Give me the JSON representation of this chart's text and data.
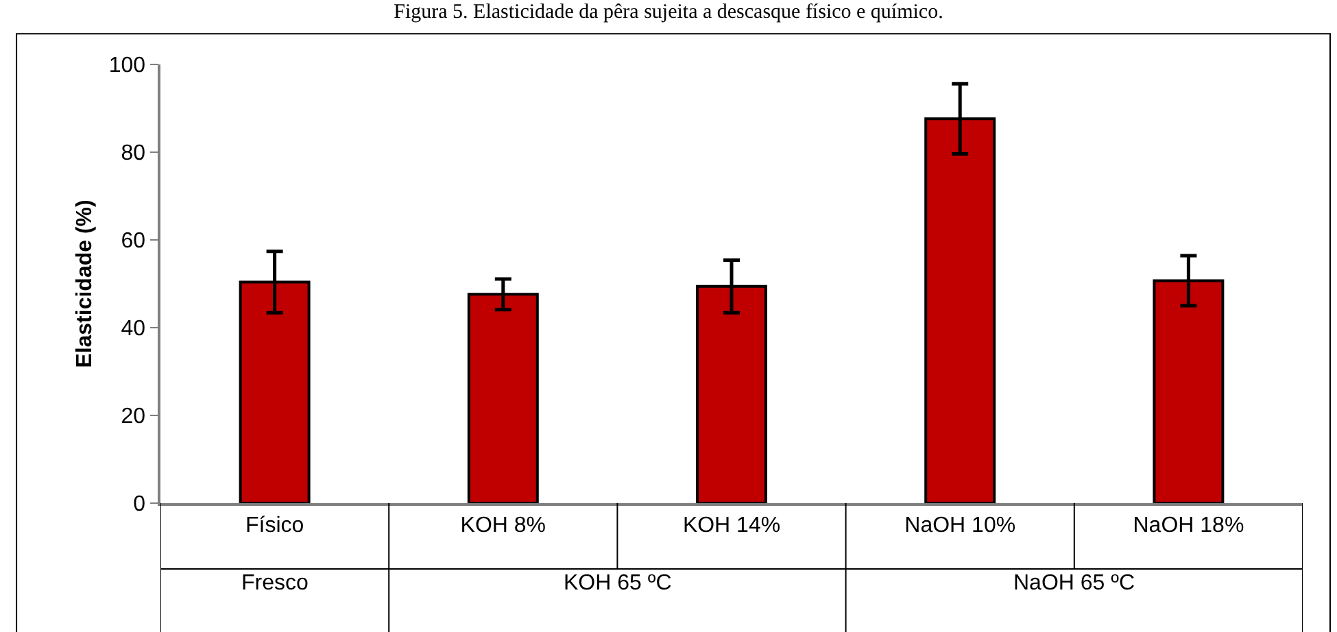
{
  "chart_data": {
    "type": "bar",
    "title": "Figura 5. Elasticidade da pêra sujeita a descasque físico e químico.",
    "ylabel": "Elasticidade (%)",
    "categories": [
      "Físico",
      "KOH 8%",
      "KOH 14%",
      "NaOH 10%",
      "NaOH 18%"
    ],
    "values": [
      50.4,
      47.6,
      49.4,
      87.6,
      50.7
    ],
    "errors": [
      7,
      3.5,
      6,
      8,
      5.7
    ],
    "color": "#c00000",
    "ylim": [
      0,
      100
    ],
    "yticks": [
      0,
      20,
      40,
      60,
      80,
      100
    ],
    "annotations": [
      "Fresco",
      "KOH 65 ºC",
      "NaOH 65 ºC"
    ]
  }
}
